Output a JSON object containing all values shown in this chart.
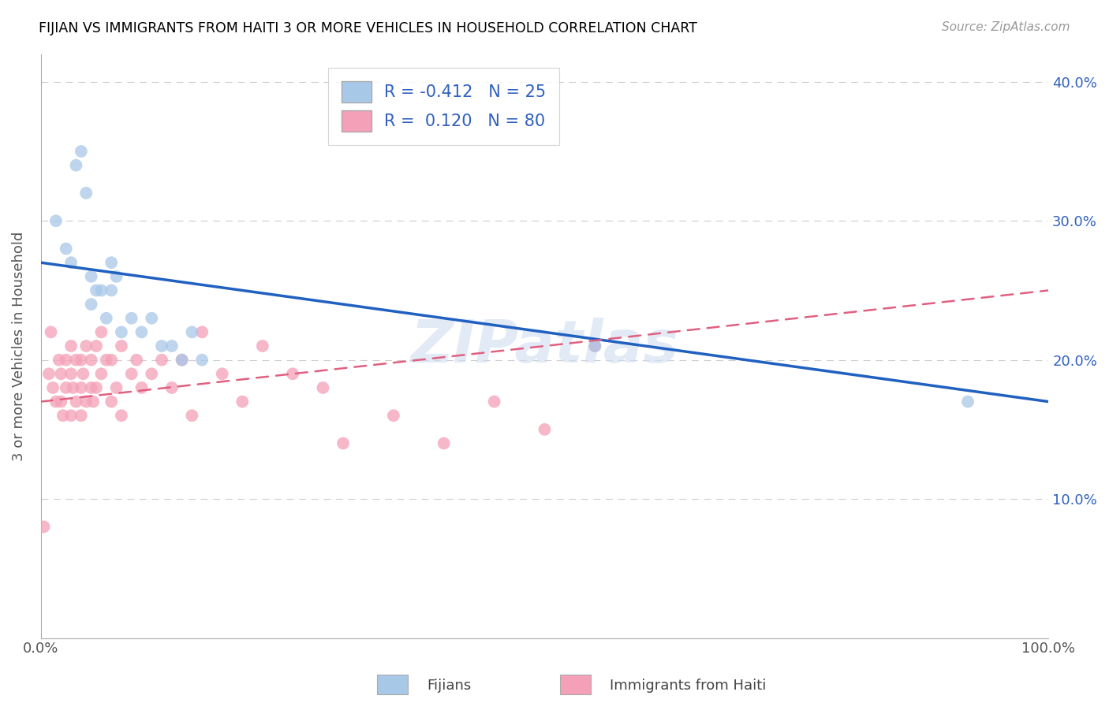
{
  "title": "FIJIAN VS IMMIGRANTS FROM HAITI 3 OR MORE VEHICLES IN HOUSEHOLD CORRELATION CHART",
  "source": "Source: ZipAtlas.com",
  "ylabel": "3 or more Vehicles in Household",
  "xlim": [
    0,
    100
  ],
  "ylim": [
    0,
    42
  ],
  "ytick_vals": [
    0,
    10,
    20,
    30,
    40
  ],
  "ytick_labels_right": [
    "",
    "10.0%",
    "20.0%",
    "30.0%",
    "40.0%"
  ],
  "legend_blue_r": "-0.412",
  "legend_blue_n": "25",
  "legend_pink_r": "0.120",
  "legend_pink_n": "80",
  "blue_color": "#a8c8e8",
  "pink_color": "#f4a0b8",
  "blue_line_color": "#2060c0",
  "pink_line_color": "#e06080",
  "watermark": "ZIPatlas",
  "fijians_label": "Fijians",
  "haiti_label": "Immigrants from Haiti",
  "blue_scatter_x": [
    1.5,
    2.5,
    3,
    3.5,
    4,
    4.5,
    5,
    5,
    5.5,
    6,
    6.5,
    7,
    7,
    7.5,
    8,
    9,
    10,
    11,
    12,
    13,
    14,
    15,
    16,
    55,
    92
  ],
  "blue_scatter_y": [
    30,
    28,
    27,
    34,
    35,
    32,
    26,
    24,
    25,
    25,
    23,
    27,
    25,
    26,
    22,
    23,
    22,
    23,
    21,
    21,
    20,
    22,
    20,
    21,
    17
  ],
  "pink_scatter_x": [
    0.3,
    0.8,
    1,
    1.2,
    1.5,
    1.8,
    2,
    2,
    2.2,
    2.5,
    2.5,
    3,
    3,
    3,
    3.2,
    3.5,
    3.5,
    4,
    4,
    4,
    4.2,
    4.5,
    4.5,
    5,
    5,
    5.2,
    5.5,
    5.5,
    6,
    6,
    6.5,
    7,
    7,
    7.5,
    8,
    8,
    9,
    9.5,
    10,
    11,
    12,
    13,
    14,
    15,
    16,
    18,
    20,
    22,
    25,
    28,
    30,
    35,
    40,
    45,
    50,
    55
  ],
  "pink_scatter_y": [
    8,
    19,
    22,
    18,
    17,
    20,
    19,
    17,
    16,
    20,
    18,
    21,
    19,
    16,
    18,
    20,
    17,
    20,
    18,
    16,
    19,
    21,
    17,
    20,
    18,
    17,
    21,
    18,
    22,
    19,
    20,
    20,
    17,
    18,
    21,
    16,
    19,
    20,
    18,
    19,
    20,
    18,
    20,
    16,
    22,
    19,
    17,
    21,
    19,
    18,
    14,
    16,
    14,
    17,
    15,
    21
  ],
  "blue_trendline_x": [
    0,
    100
  ],
  "blue_trendline_y": [
    27,
    17
  ],
  "pink_trendline_x": [
    0,
    100
  ],
  "pink_trendline_y": [
    17,
    25
  ]
}
